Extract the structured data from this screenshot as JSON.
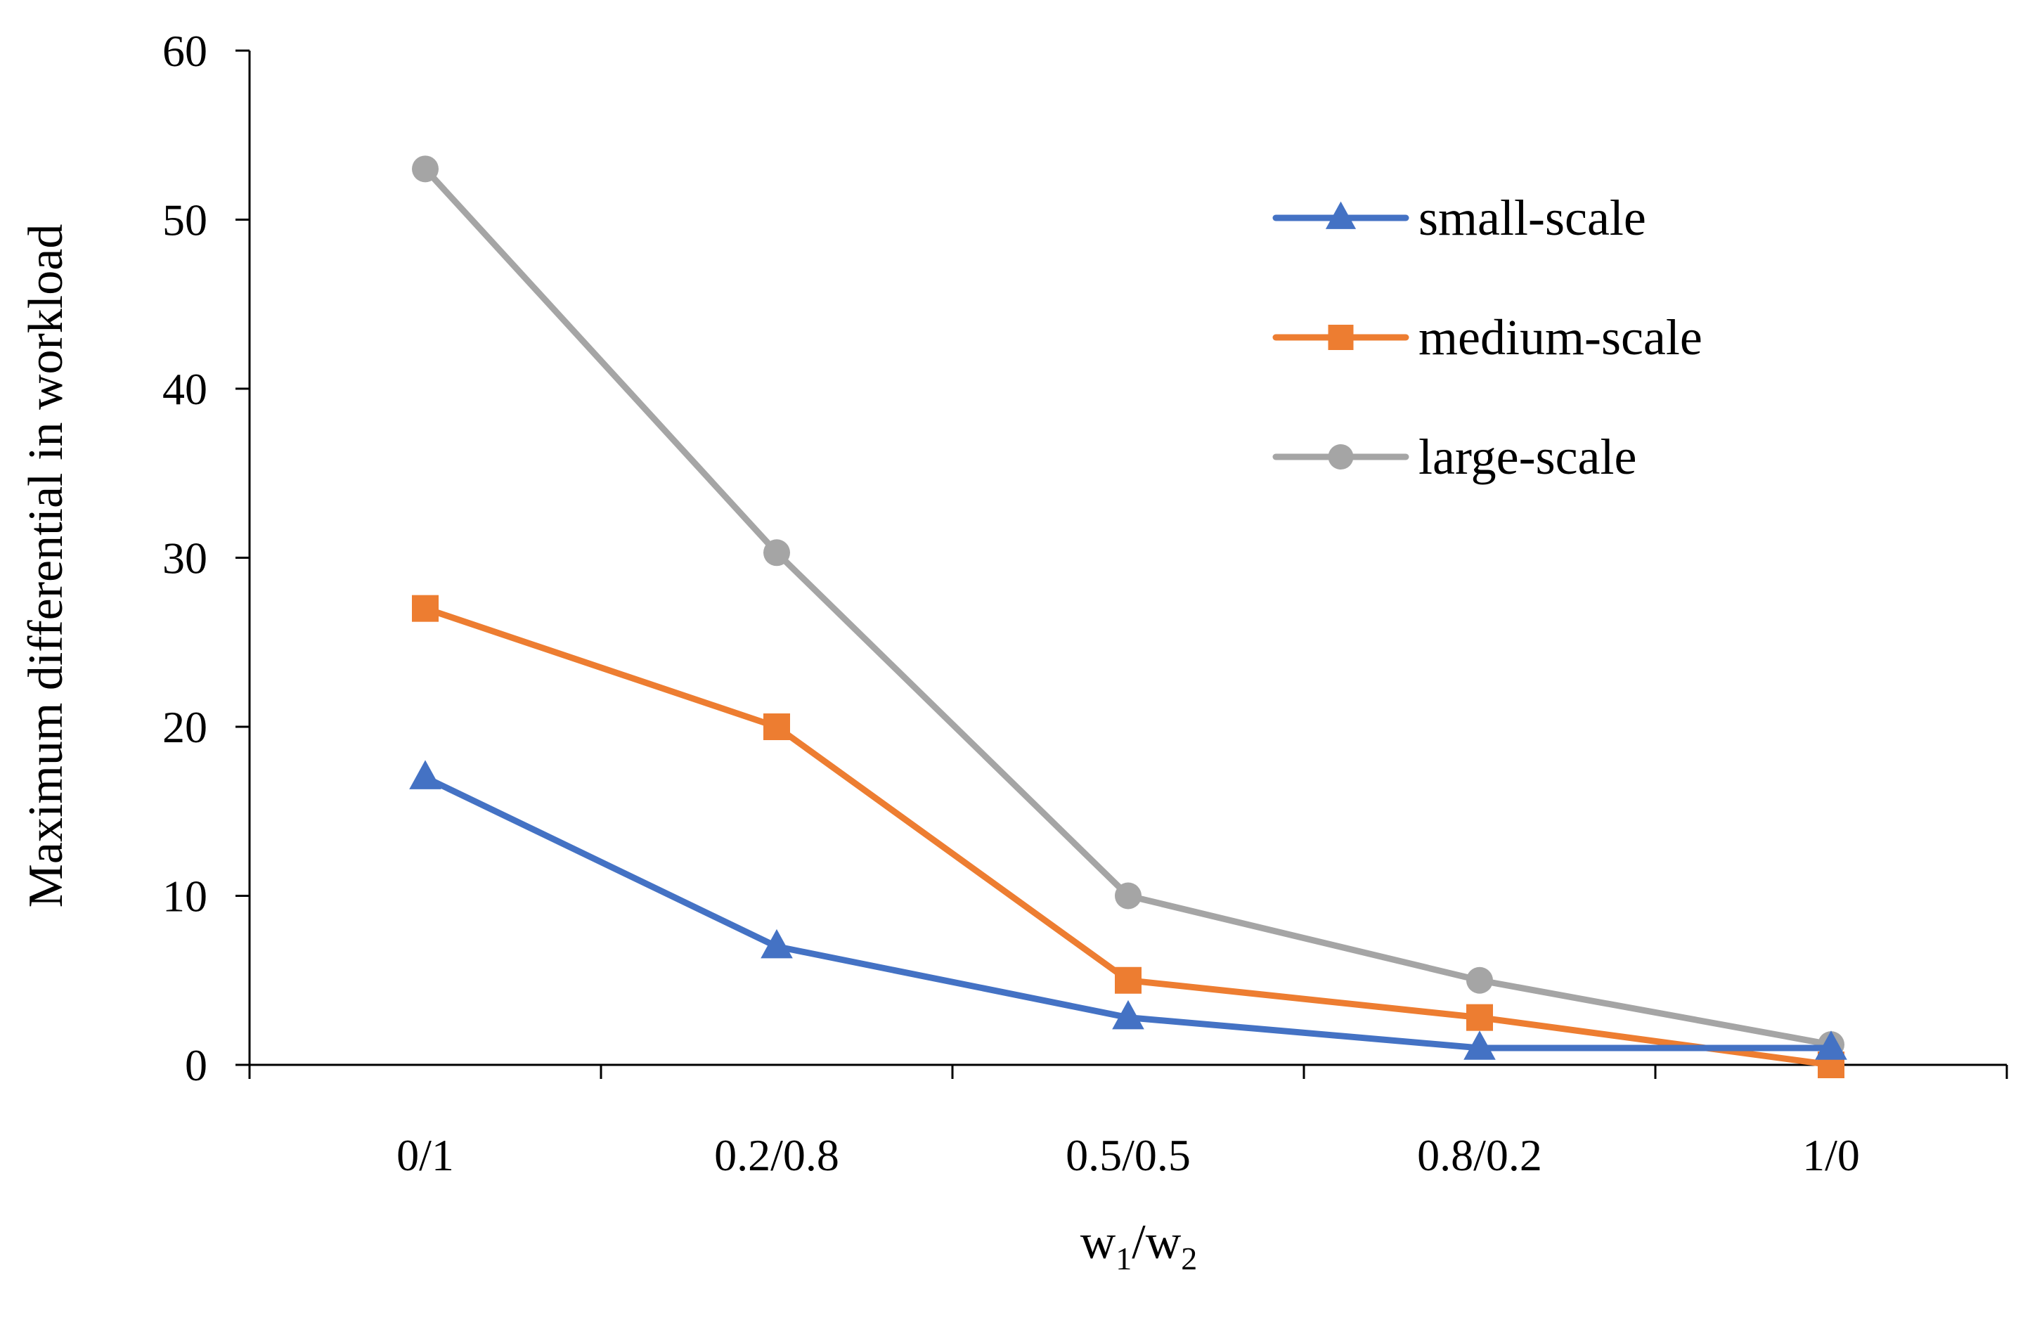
{
  "chart_data": {
    "type": "line",
    "title": "",
    "xlabel": "w1/w2",
    "xlabel_parts": {
      "w": "w",
      "sub1": "1",
      "slash": "/",
      "sub2": "2"
    },
    "ylabel": "Maximum differential in workload",
    "categories": [
      "0/1",
      "0.2/0.8",
      "0.5/0.5",
      "0.8/0.2",
      "1/0"
    ],
    "ylim": [
      0,
      60
    ],
    "yticks": [
      0,
      10,
      20,
      30,
      40,
      50,
      60
    ],
    "grid": false,
    "legend_position": "top-right",
    "series": [
      {
        "name": "small-scale",
        "color": "#4472C4",
        "marker": "triangle",
        "values": [
          17,
          7,
          2.8,
          1,
          1
        ]
      },
      {
        "name": "medium-scale",
        "color": "#ED7D31",
        "marker": "square",
        "values": [
          27,
          20,
          5,
          2.8,
          0
        ]
      },
      {
        "name": "large-scale",
        "color": "#A5A5A5",
        "marker": "circle",
        "values": [
          53,
          30.3,
          10,
          5,
          1.2
        ]
      }
    ]
  }
}
